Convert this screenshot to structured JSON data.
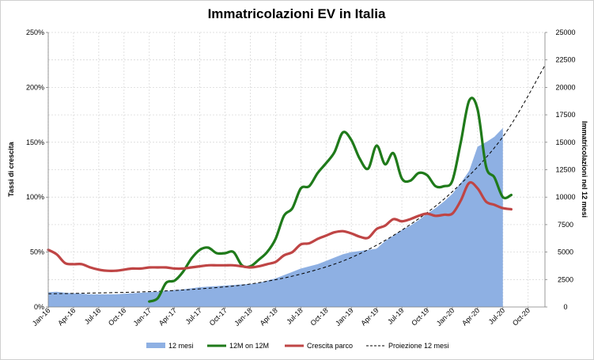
{
  "chart_data": {
    "type": "line",
    "title": "Immatricolazioni EV in Italia",
    "ylabel_left": "Tassi di crescita",
    "ylabel_right": "Immatricolazioni nel 12 mesi",
    "left_axis": {
      "min": 0,
      "max": 250,
      "ticks": [
        "0%",
        "50%",
        "100%",
        "150%",
        "200%",
        "250%"
      ]
    },
    "right_axis": {
      "min": 0,
      "max": 25000,
      "ticks": [
        "0",
        "2500",
        "5000",
        "7500",
        "10000",
        "12500",
        "15000",
        "17500",
        "20000",
        "22500",
        "25000"
      ]
    },
    "x_start": "2016-01",
    "x_end": "2020-12",
    "x_ticks": [
      "Jan-16",
      "Apr-16",
      "Jul-16",
      "Oct-16",
      "Jan-17",
      "Apr-17",
      "Jul-17",
      "Oct-17",
      "Jan-18",
      "Apr-18",
      "Jul-18",
      "Oct-18",
      "Jan-19",
      "Apr-19",
      "Jul-19",
      "Oct-19",
      "Jan-20",
      "Apr-20",
      "Jul-20",
      "Oct-20"
    ],
    "grid": true,
    "legend_position": "bottom",
    "series": [
      {
        "name": "12 mesi",
        "kind": "area",
        "axis": "right",
        "color": "#8eb0e3",
        "points": [
          [
            "2016-01",
            1350
          ],
          [
            "2016-02",
            1380
          ],
          [
            "2016-03",
            1300
          ],
          [
            "2016-04",
            1250
          ],
          [
            "2016-05",
            1200
          ],
          [
            "2016-06",
            1150
          ],
          [
            "2016-07",
            1150
          ],
          [
            "2016-08",
            1150
          ],
          [
            "2016-09",
            1150
          ],
          [
            "2016-10",
            1200
          ],
          [
            "2016-11",
            1250
          ],
          [
            "2016-12",
            1300
          ],
          [
            "2017-01",
            1350
          ],
          [
            "2017-02",
            1400
          ],
          [
            "2017-03",
            1450
          ],
          [
            "2017-04",
            1550
          ],
          [
            "2017-05",
            1600
          ],
          [
            "2017-06",
            1700
          ],
          [
            "2017-07",
            1800
          ],
          [
            "2017-08",
            1850
          ],
          [
            "2017-09",
            1900
          ],
          [
            "2017-10",
            1950
          ],
          [
            "2017-11",
            2000
          ],
          [
            "2017-12",
            2050
          ],
          [
            "2018-01",
            2100
          ],
          [
            "2018-02",
            2200
          ],
          [
            "2018-03",
            2400
          ],
          [
            "2018-04",
            2600
          ],
          [
            "2018-05",
            2900
          ],
          [
            "2018-06",
            3200
          ],
          [
            "2018-07",
            3500
          ],
          [
            "2018-08",
            3700
          ],
          [
            "2018-09",
            3900
          ],
          [
            "2018-10",
            4200
          ],
          [
            "2018-11",
            4500
          ],
          [
            "2018-12",
            4800
          ],
          [
            "2019-01",
            5000
          ],
          [
            "2019-02",
            5100
          ],
          [
            "2019-03",
            5200
          ],
          [
            "2019-04",
            5300
          ],
          [
            "2019-05",
            6000
          ],
          [
            "2019-06",
            6500
          ],
          [
            "2019-07",
            7000
          ],
          [
            "2019-08",
            7400
          ],
          [
            "2019-09",
            7900
          ],
          [
            "2019-10",
            8500
          ],
          [
            "2019-11",
            9000
          ],
          [
            "2019-12",
            9600
          ],
          [
            "2020-01",
            10300
          ],
          [
            "2020-02",
            11300
          ],
          [
            "2020-03",
            12400
          ],
          [
            "2020-04",
            14600
          ],
          [
            "2020-05",
            15000
          ],
          [
            "2020-06",
            15500
          ],
          [
            "2020-07",
            16300
          ]
        ]
      },
      {
        "name": "12M on 12M",
        "kind": "line",
        "axis": "left",
        "color": "#1f7a1a",
        "points": [
          [
            "2017-01",
            5
          ],
          [
            "2017-02",
            8
          ],
          [
            "2017-03",
            22
          ],
          [
            "2017-04",
            24
          ],
          [
            "2017-05",
            32
          ],
          [
            "2017-06",
            44
          ],
          [
            "2017-07",
            52
          ],
          [
            "2017-08",
            54
          ],
          [
            "2017-09",
            49
          ],
          [
            "2017-10",
            49
          ],
          [
            "2017-11",
            50
          ],
          [
            "2017-12",
            38
          ],
          [
            "2018-01",
            37
          ],
          [
            "2018-02",
            43
          ],
          [
            "2018-03",
            50
          ],
          [
            "2018-04",
            62
          ],
          [
            "2018-05",
            83
          ],
          [
            "2018-06",
            90
          ],
          [
            "2018-07",
            108
          ],
          [
            "2018-08",
            110
          ],
          [
            "2018-09",
            122
          ],
          [
            "2018-10",
            131
          ],
          [
            "2018-11",
            141
          ],
          [
            "2018-12",
            159
          ],
          [
            "2019-01",
            152
          ],
          [
            "2019-02",
            135
          ],
          [
            "2019-03",
            126
          ],
          [
            "2019-04",
            147
          ],
          [
            "2019-05",
            130
          ],
          [
            "2019-06",
            140
          ],
          [
            "2019-07",
            117
          ],
          [
            "2019-08",
            115
          ],
          [
            "2019-09",
            122
          ],
          [
            "2019-10",
            120
          ],
          [
            "2019-11",
            110
          ],
          [
            "2019-12",
            110
          ],
          [
            "2020-01",
            115
          ],
          [
            "2020-02",
            150
          ],
          [
            "2020-03",
            188
          ],
          [
            "2020-04",
            180
          ],
          [
            "2020-05",
            128
          ],
          [
            "2020-06",
            118
          ],
          [
            "2020-07",
            100
          ],
          [
            "2020-08",
            102
          ]
        ]
      },
      {
        "name": "Crescita parco",
        "kind": "line",
        "axis": "left",
        "color": "#bf4545",
        "points": [
          [
            "2016-01",
            52
          ],
          [
            "2016-02",
            48
          ],
          [
            "2016-03",
            40
          ],
          [
            "2016-04",
            39
          ],
          [
            "2016-05",
            39
          ],
          [
            "2016-06",
            36
          ],
          [
            "2016-07",
            34
          ],
          [
            "2016-08",
            33
          ],
          [
            "2016-09",
            33
          ],
          [
            "2016-10",
            34
          ],
          [
            "2016-11",
            35
          ],
          [
            "2016-12",
            35
          ],
          [
            "2017-01",
            36
          ],
          [
            "2017-02",
            36
          ],
          [
            "2017-03",
            36
          ],
          [
            "2017-04",
            35
          ],
          [
            "2017-05",
            35
          ],
          [
            "2017-06",
            36
          ],
          [
            "2017-07",
            37
          ],
          [
            "2017-08",
            38
          ],
          [
            "2017-09",
            38
          ],
          [
            "2017-10",
            38
          ],
          [
            "2017-11",
            38
          ],
          [
            "2017-12",
            37
          ],
          [
            "2018-01",
            36
          ],
          [
            "2018-02",
            37
          ],
          [
            "2018-03",
            39
          ],
          [
            "2018-04",
            41
          ],
          [
            "2018-05",
            47
          ],
          [
            "2018-06",
            50
          ],
          [
            "2018-07",
            57
          ],
          [
            "2018-08",
            58
          ],
          [
            "2018-09",
            62
          ],
          [
            "2018-10",
            65
          ],
          [
            "2018-11",
            68
          ],
          [
            "2018-12",
            69
          ],
          [
            "2019-01",
            67
          ],
          [
            "2019-02",
            64
          ],
          [
            "2019-03",
            63
          ],
          [
            "2019-04",
            71
          ],
          [
            "2019-05",
            74
          ],
          [
            "2019-06",
            80
          ],
          [
            "2019-07",
            78
          ],
          [
            "2019-08",
            80
          ],
          [
            "2019-09",
            83
          ],
          [
            "2019-10",
            85
          ],
          [
            "2019-11",
            83
          ],
          [
            "2019-12",
            84
          ],
          [
            "2020-01",
            85
          ],
          [
            "2020-02",
            97
          ],
          [
            "2020-03",
            113
          ],
          [
            "2020-04",
            108
          ],
          [
            "2020-05",
            96
          ],
          [
            "2020-06",
            93
          ],
          [
            "2020-07",
            90
          ],
          [
            "2020-08",
            89
          ]
        ]
      },
      {
        "name": "Proiezione 12 mesi",
        "kind": "dashed",
        "axis": "right",
        "color": "#000000",
        "points": [
          [
            "2016-01",
            1200
          ],
          [
            "2016-07",
            1280
          ],
          [
            "2017-01",
            1400
          ],
          [
            "2017-07",
            1650
          ],
          [
            "2018-01",
            2100
          ],
          [
            "2018-07",
            3000
          ],
          [
            "2019-01",
            4500
          ],
          [
            "2019-07",
            7000
          ],
          [
            "2020-01",
            10500
          ],
          [
            "2020-07",
            15500
          ],
          [
            "2020-12",
            22000
          ]
        ]
      }
    ]
  }
}
